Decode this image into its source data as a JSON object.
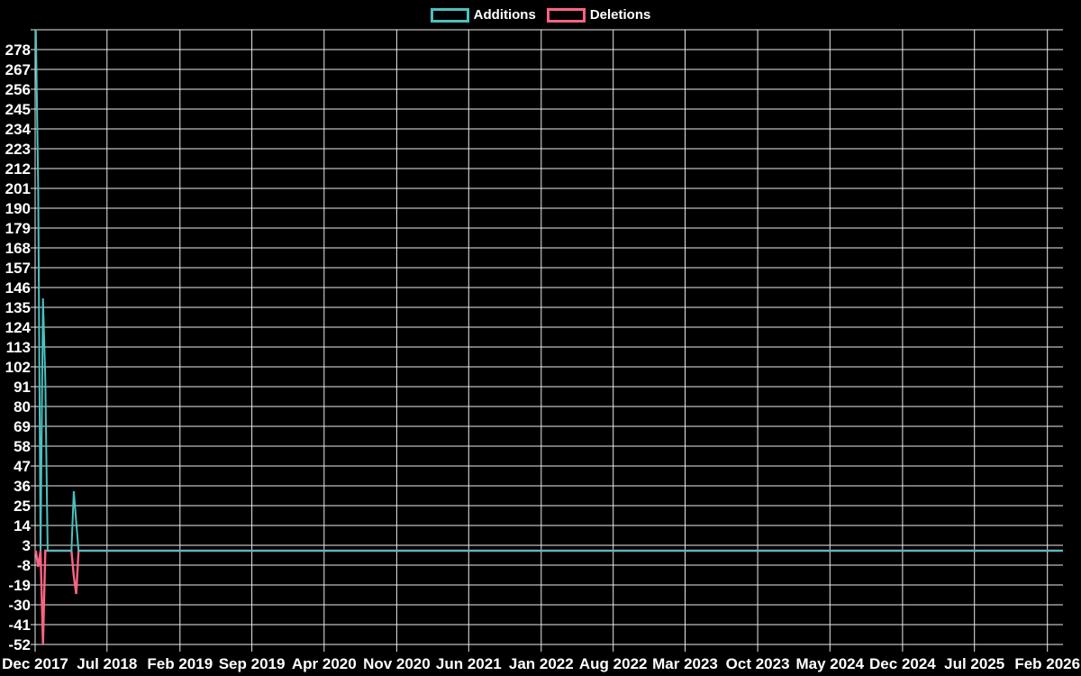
{
  "page": {
    "background": "#000000"
  },
  "legend": {
    "position": "top-center",
    "items": [
      {
        "label": "Additions",
        "color": "#4BC0C0"
      },
      {
        "label": "Deletions",
        "color": "#FF6384"
      }
    ]
  },
  "chart_data": {
    "type": "line",
    "title": "",
    "grid": true,
    "background": "#000000",
    "grid_color": "#ebebeb",
    "text_color": "#ffffff",
    "legend_position": "top",
    "y_axis": {
      "min": -52,
      "max": 289,
      "tick_step": 11,
      "tick_labels": [
        278,
        267,
        256,
        245,
        234,
        223,
        212,
        201,
        190,
        179,
        168,
        157,
        146,
        135,
        124,
        113,
        102,
        91,
        80,
        69,
        58,
        47,
        36,
        25,
        14,
        3,
        -8,
        -19,
        -30,
        -41,
        -52
      ]
    },
    "x_axis": {
      "domain": [
        "2017-12-01",
        "2026-03-19"
      ],
      "ticks": [
        {
          "label": "Dec 2017",
          "date": "2017-12-01"
        },
        {
          "label": "Jul 2018",
          "date": "2018-07-01"
        },
        {
          "label": "Feb 2019",
          "date": "2019-02-01"
        },
        {
          "label": "Sep 2019",
          "date": "2019-09-01"
        },
        {
          "label": "Apr 2020",
          "date": "2020-04-01"
        },
        {
          "label": "Nov 2020",
          "date": "2020-11-01"
        },
        {
          "label": "Jun 2021",
          "date": "2021-06-01"
        },
        {
          "label": "Jan 2022",
          "date": "2022-01-01"
        },
        {
          "label": "Aug 2022",
          "date": "2022-08-01"
        },
        {
          "label": "Mar 2023",
          "date": "2023-03-01"
        },
        {
          "label": "Oct 2023",
          "date": "2023-10-01"
        },
        {
          "label": "May 2024",
          "date": "2024-05-01"
        },
        {
          "label": "Dec 2024",
          "date": "2024-12-01"
        },
        {
          "label": "Jul 2025",
          "date": "2025-07-01"
        },
        {
          "label": "Feb 2026",
          "date": "2026-02-01"
        }
      ]
    },
    "series": [
      {
        "name": "Additions",
        "color": "#4BC0C0",
        "points": [
          [
            "2017-12-03",
            289
          ],
          [
            "2017-12-10",
            201
          ],
          [
            "2017-12-17",
            0
          ],
          [
            "2017-12-24",
            140
          ],
          [
            "2017-12-31",
            95
          ],
          [
            "2018-01-07",
            0
          ],
          [
            "2018-03-18",
            0
          ],
          [
            "2018-03-25",
            33
          ],
          [
            "2018-04-01",
            16
          ],
          [
            "2018-04-08",
            0
          ],
          [
            "2026-03-19",
            0
          ]
        ]
      },
      {
        "name": "Deletions",
        "color": "#FF6384",
        "points": [
          [
            "2017-12-03",
            0
          ],
          [
            "2017-12-10",
            -9
          ],
          [
            "2017-12-17",
            0
          ],
          [
            "2017-12-24",
            -52
          ],
          [
            "2017-12-31",
            0
          ],
          [
            "2018-03-18",
            0
          ],
          [
            "2018-03-25",
            -14
          ],
          [
            "2018-04-01",
            -24
          ],
          [
            "2018-04-08",
            0
          ],
          [
            "2026-03-19",
            0
          ]
        ]
      }
    ]
  }
}
